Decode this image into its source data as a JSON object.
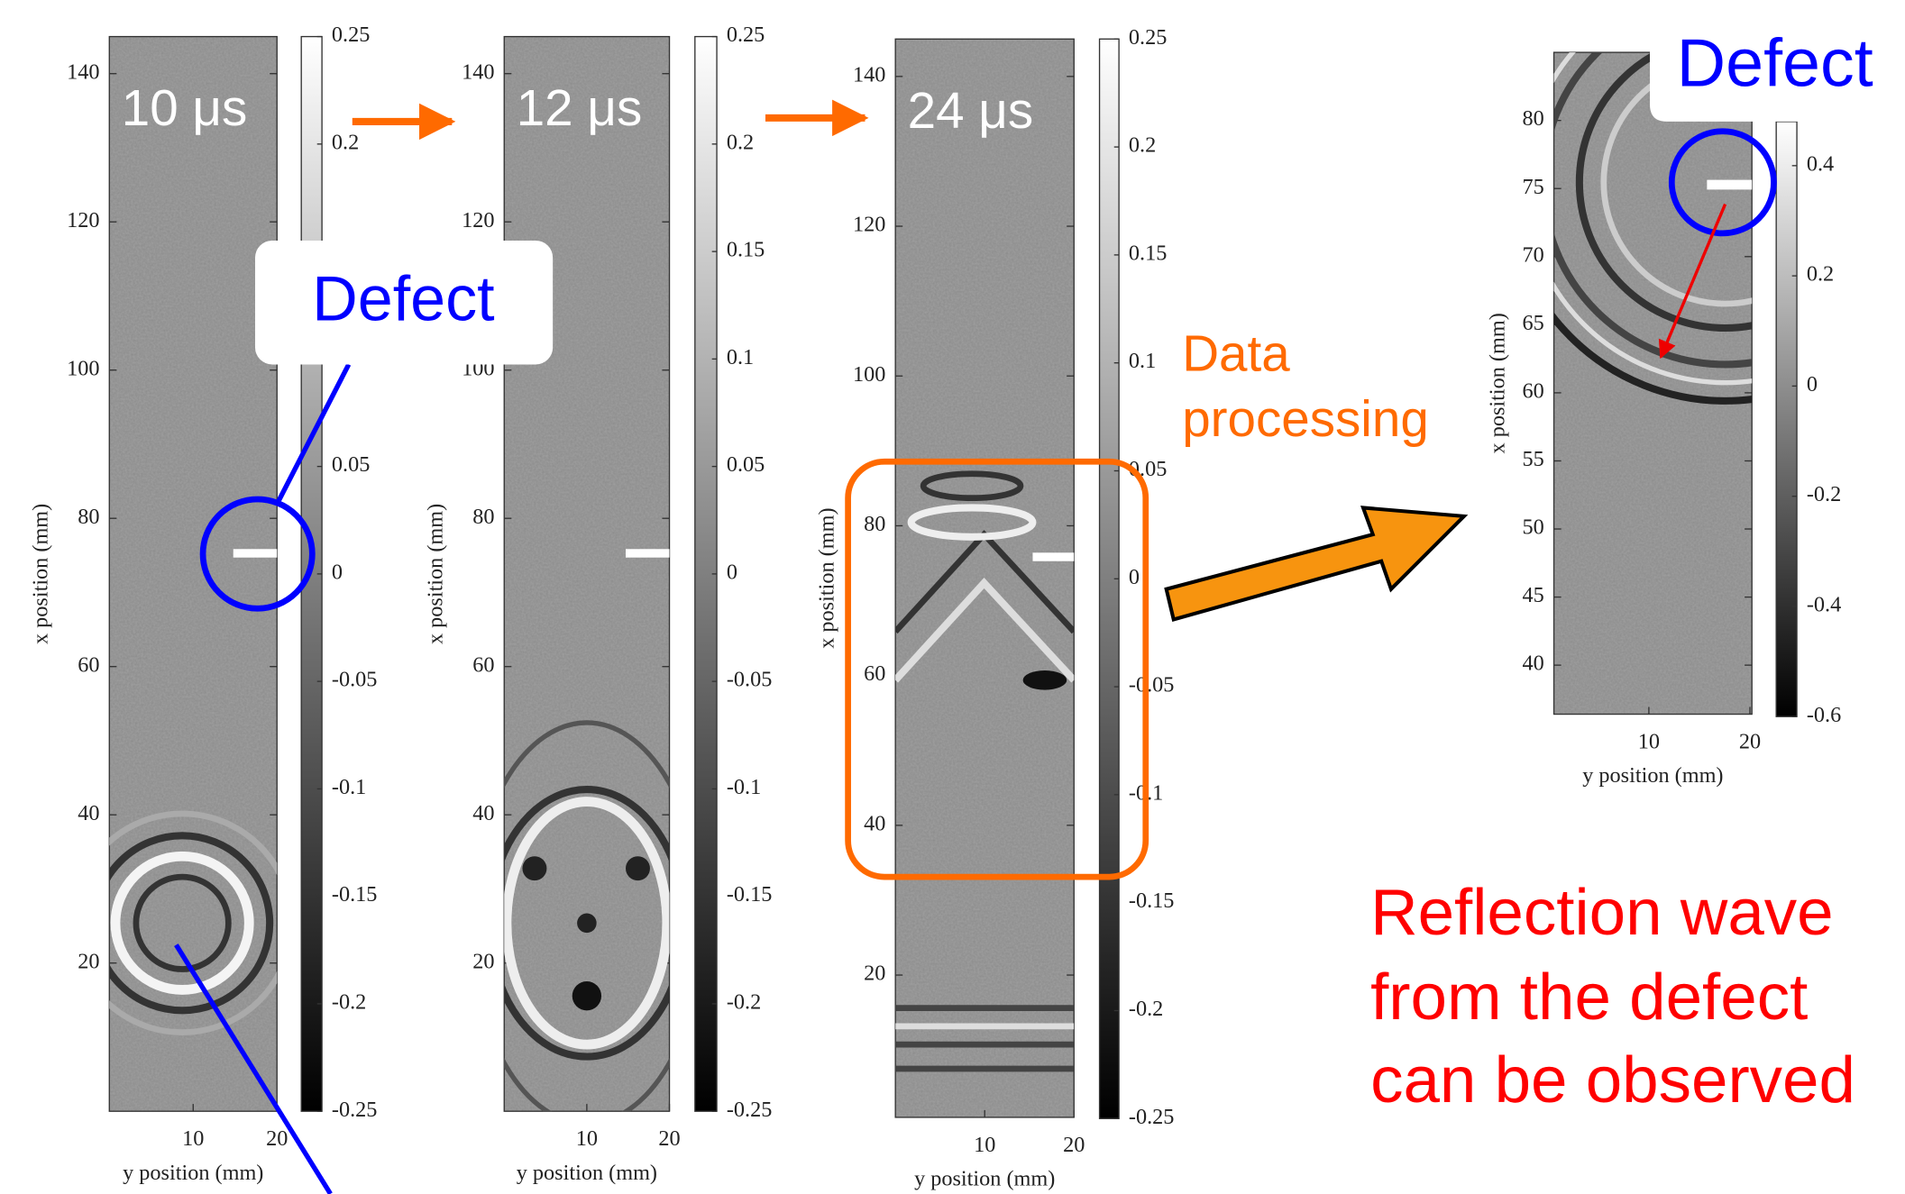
{
  "chart_data": [
    {
      "type": "heatmap",
      "title": "10 μs",
      "xlabel": "y position (mm)",
      "ylabel": "x position (mm)",
      "xlim": [
        0,
        20
      ],
      "ylim": [
        0,
        145
      ],
      "xticks": [
        10,
        20
      ],
      "yticks": [
        20,
        40,
        60,
        80,
        100,
        120,
        140
      ],
      "colorbar": {
        "lim": [
          -0.25,
          0.25
        ],
        "ticks": [
          -0.25,
          -0.2,
          -0.15,
          -0.1,
          -0.05,
          0,
          0.05,
          0.1,
          0.15,
          0.2,
          0.25
        ]
      }
    },
    {
      "type": "heatmap",
      "title": "12 μs",
      "xlabel": "y position (mm)",
      "ylabel": "x position (mm)",
      "xlim": [
        0,
        20
      ],
      "ylim": [
        0,
        145
      ],
      "xticks": [
        10,
        20
      ],
      "yticks": [
        20,
        40,
        60,
        80,
        100,
        120,
        140
      ],
      "colorbar": {
        "lim": [
          -0.25,
          0.25
        ],
        "ticks": [
          -0.25,
          -0.2,
          -0.15,
          -0.1,
          -0.05,
          0,
          0.05,
          0.1,
          0.15,
          0.2,
          0.25
        ]
      }
    },
    {
      "type": "heatmap",
      "title": "24 μs",
      "xlabel": "y position (mm)",
      "ylabel": "x position (mm)",
      "xlim": [
        0,
        20
      ],
      "ylim": [
        1,
        145
      ],
      "xticks": [
        10,
        20
      ],
      "yticks": [
        20,
        40,
        60,
        80,
        100,
        120,
        140
      ],
      "colorbar": {
        "lim": [
          -0.25,
          0.25
        ],
        "ticks": [
          -0.25,
          -0.2,
          -0.15,
          -0.1,
          -0.05,
          0,
          0.05,
          0.1,
          0.15,
          0.2,
          0.25
        ]
      }
    },
    {
      "type": "heatmap",
      "xlabel": "y position (mm)",
      "ylabel": "x position (mm)",
      "xlim": [
        0.6,
        20.2
      ],
      "ylim": [
        36.4,
        85
      ],
      "xticks": [
        10,
        20
      ],
      "yticks": [
        40,
        45,
        50,
        55,
        60,
        65,
        70,
        75,
        80
      ],
      "colorbar": {
        "lim": [
          -0.6,
          0.48
        ],
        "ticks": [
          -0.6,
          -0.4,
          -0.2,
          0,
          0.2,
          0.4
        ]
      }
    }
  ],
  "annotations": {
    "defect_left": "Defect",
    "data_processing": [
      "Data",
      "processing"
    ],
    "defect_right": "Defect",
    "reflection": [
      "Reflection wave",
      "from the defect",
      "can be observed"
    ]
  }
}
